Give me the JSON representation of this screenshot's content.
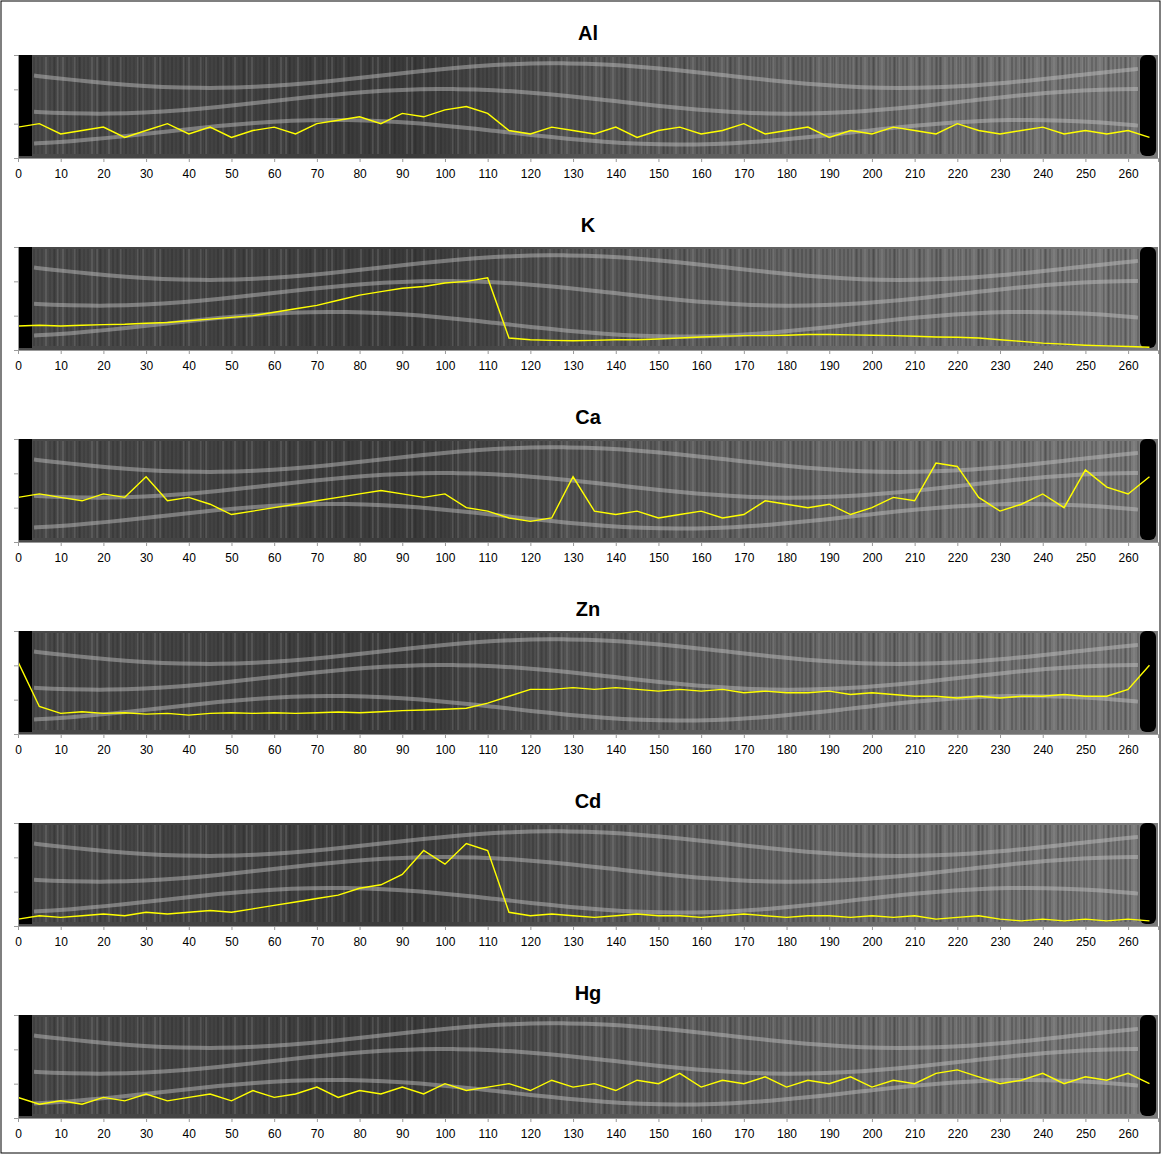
{
  "chart_data": [
    {
      "type": "line",
      "title": "Al",
      "color": "#ffff00",
      "tick_labels": "x",
      "xlim": [
        0,
        267
      ],
      "xticks": [
        0,
        10,
        20,
        30,
        40,
        50,
        60,
        70,
        80,
        90,
        100,
        110,
        120,
        130,
        140,
        150,
        160,
        170,
        180,
        190,
        200,
        210,
        220,
        230,
        240,
        250,
        260
      ],
      "ylim": [
        0,
        3
      ],
      "yticks": [
        0,
        1,
        2,
        3
      ],
      "x": [
        0,
        5,
        10,
        15,
        20,
        25,
        30,
        35,
        40,
        45,
        50,
        55,
        60,
        65,
        70,
        75,
        80,
        85,
        90,
        95,
        100,
        105,
        110,
        115,
        120,
        125,
        130,
        135,
        140,
        145,
        150,
        155,
        160,
        165,
        170,
        175,
        180,
        185,
        190,
        195,
        200,
        205,
        210,
        215,
        220,
        225,
        230,
        235,
        240,
        245,
        250,
        255,
        260,
        265
      ],
      "values": [
        0.9,
        1.0,
        0.7,
        0.8,
        0.9,
        0.6,
        0.8,
        1.0,
        0.7,
        0.9,
        0.6,
        0.8,
        0.9,
        0.7,
        1.0,
        1.1,
        1.2,
        1.0,
        1.3,
        1.2,
        1.4,
        1.5,
        1.3,
        0.8,
        0.7,
        0.9,
        0.8,
        0.7,
        0.9,
        0.6,
        0.8,
        0.9,
        0.7,
        0.8,
        1.0,
        0.7,
        0.8,
        0.9,
        0.6,
        0.8,
        0.7,
        0.9,
        0.8,
        0.7,
        1.0,
        0.8,
        0.7,
        0.8,
        0.9,
        0.7,
        0.8,
        0.7,
        0.8,
        0.6
      ]
    },
    {
      "type": "line",
      "title": "K",
      "color": "#ffff00",
      "tick_labels": "x",
      "xlim": [
        0,
        267
      ],
      "xticks": [
        0,
        10,
        20,
        30,
        40,
        50,
        60,
        70,
        80,
        90,
        100,
        110,
        120,
        130,
        140,
        150,
        160,
        170,
        180,
        190,
        200,
        210,
        220,
        230,
        240,
        250,
        260
      ],
      "ylim": [
        0,
        3
      ],
      "yticks": [
        0,
        1,
        2,
        3
      ],
      "x": [
        0,
        5,
        10,
        15,
        20,
        25,
        30,
        35,
        40,
        45,
        50,
        55,
        60,
        65,
        70,
        75,
        80,
        85,
        90,
        95,
        100,
        105,
        110,
        115,
        120,
        125,
        130,
        135,
        140,
        145,
        150,
        155,
        160,
        165,
        170,
        175,
        180,
        185,
        190,
        195,
        200,
        205,
        210,
        215,
        220,
        225,
        230,
        235,
        240,
        245,
        250,
        255,
        260,
        265
      ],
      "values": [
        0.7,
        0.72,
        0.7,
        0.72,
        0.74,
        0.75,
        0.78,
        0.8,
        0.85,
        0.9,
        0.95,
        1.0,
        1.1,
        1.2,
        1.3,
        1.45,
        1.6,
        1.7,
        1.8,
        1.85,
        1.95,
        2.0,
        2.1,
        0.35,
        0.3,
        0.28,
        0.27,
        0.28,
        0.3,
        0.3,
        0.32,
        0.35,
        0.38,
        0.4,
        0.42,
        0.42,
        0.43,
        0.45,
        0.45,
        0.44,
        0.43,
        0.42,
        0.4,
        0.38,
        0.37,
        0.35,
        0.3,
        0.25,
        0.2,
        0.17,
        0.14,
        0.12,
        0.1,
        0.08
      ]
    },
    {
      "type": "line",
      "title": "Ca",
      "color": "#ffff00",
      "tick_labels": "x",
      "xlim": [
        0,
        267
      ],
      "xticks": [
        0,
        10,
        20,
        30,
        40,
        50,
        60,
        70,
        80,
        90,
        100,
        110,
        120,
        130,
        140,
        150,
        160,
        170,
        180,
        190,
        200,
        210,
        220,
        230,
        240,
        250,
        260
      ],
      "ylim": [
        0,
        3
      ],
      "yticks": [
        0,
        1,
        2,
        3
      ],
      "x": [
        0,
        5,
        10,
        15,
        20,
        25,
        30,
        35,
        40,
        45,
        50,
        55,
        60,
        65,
        70,
        75,
        80,
        85,
        90,
        95,
        100,
        105,
        110,
        115,
        120,
        125,
        130,
        135,
        140,
        145,
        150,
        155,
        160,
        165,
        170,
        175,
        180,
        185,
        190,
        195,
        200,
        205,
        210,
        215,
        220,
        225,
        230,
        235,
        240,
        245,
        250,
        255,
        260,
        265
      ],
      "values": [
        1.3,
        1.4,
        1.3,
        1.2,
        1.4,
        1.3,
        1.9,
        1.2,
        1.3,
        1.1,
        0.8,
        0.9,
        1.0,
        1.1,
        1.2,
        1.3,
        1.4,
        1.5,
        1.4,
        1.3,
        1.4,
        1.0,
        0.9,
        0.7,
        0.6,
        0.7,
        1.9,
        0.9,
        0.8,
        0.9,
        0.7,
        0.8,
        0.9,
        0.7,
        0.8,
        1.2,
        1.1,
        1.0,
        1.1,
        0.8,
        1.0,
        1.3,
        1.2,
        2.3,
        2.2,
        1.3,
        0.9,
        1.1,
        1.4,
        1.0,
        2.1,
        1.6,
        1.4,
        1.9
      ]
    },
    {
      "type": "line",
      "title": "Zn",
      "color": "#ffff00",
      "tick_labels": "x",
      "xlim": [
        0,
        267
      ],
      "xticks": [
        0,
        10,
        20,
        30,
        40,
        50,
        60,
        70,
        80,
        90,
        100,
        110,
        120,
        130,
        140,
        150,
        160,
        170,
        180,
        190,
        200,
        210,
        220,
        230,
        240,
        250,
        260
      ],
      "ylim": [
        0,
        3
      ],
      "yticks": [
        0,
        1,
        2,
        3
      ],
      "x": [
        0,
        5,
        10,
        15,
        20,
        25,
        30,
        35,
        40,
        45,
        50,
        55,
        60,
        65,
        70,
        75,
        80,
        85,
        90,
        95,
        100,
        105,
        110,
        115,
        120,
        125,
        130,
        135,
        140,
        145,
        150,
        155,
        160,
        165,
        170,
        175,
        180,
        185,
        190,
        195,
        200,
        205,
        210,
        215,
        220,
        225,
        230,
        235,
        240,
        245,
        250,
        255,
        260,
        265
      ],
      "values": [
        2.1,
        0.8,
        0.6,
        0.65,
        0.6,
        0.62,
        0.58,
        0.6,
        0.55,
        0.6,
        0.62,
        0.6,
        0.62,
        0.6,
        0.62,
        0.64,
        0.62,
        0.65,
        0.68,
        0.7,
        0.72,
        0.75,
        0.9,
        1.1,
        1.3,
        1.3,
        1.35,
        1.3,
        1.35,
        1.3,
        1.25,
        1.3,
        1.25,
        1.3,
        1.2,
        1.25,
        1.2,
        1.2,
        1.25,
        1.15,
        1.2,
        1.15,
        1.1,
        1.1,
        1.05,
        1.1,
        1.05,
        1.1,
        1.1,
        1.15,
        1.1,
        1.1,
        1.3,
        2.0
      ]
    },
    {
      "type": "line",
      "title": "Cd",
      "color": "#ffff00",
      "tick_labels": "x",
      "xlim": [
        0,
        267
      ],
      "xticks": [
        0,
        10,
        20,
        30,
        40,
        50,
        60,
        70,
        80,
        90,
        100,
        110,
        120,
        130,
        140,
        150,
        160,
        170,
        180,
        190,
        200,
        210,
        220,
        230,
        240,
        250,
        260
      ],
      "ylim": [
        0,
        3
      ],
      "yticks": [
        0,
        1,
        2,
        3
      ],
      "x": [
        0,
        5,
        10,
        15,
        20,
        25,
        30,
        35,
        40,
        45,
        50,
        55,
        60,
        65,
        70,
        75,
        80,
        85,
        90,
        95,
        100,
        105,
        110,
        115,
        120,
        125,
        130,
        135,
        140,
        145,
        150,
        155,
        160,
        165,
        170,
        175,
        180,
        185,
        190,
        195,
        200,
        205,
        210,
        215,
        220,
        225,
        230,
        235,
        240,
        245,
        250,
        255,
        260,
        265
      ],
      "values": [
        0.2,
        0.3,
        0.25,
        0.3,
        0.35,
        0.3,
        0.4,
        0.35,
        0.4,
        0.45,
        0.4,
        0.5,
        0.6,
        0.7,
        0.8,
        0.9,
        1.1,
        1.2,
        1.5,
        2.2,
        1.8,
        2.4,
        2.2,
        0.4,
        0.3,
        0.35,
        0.3,
        0.25,
        0.3,
        0.35,
        0.3,
        0.3,
        0.25,
        0.3,
        0.35,
        0.3,
        0.25,
        0.3,
        0.3,
        0.25,
        0.3,
        0.25,
        0.3,
        0.2,
        0.25,
        0.3,
        0.2,
        0.15,
        0.2,
        0.15,
        0.2,
        0.15,
        0.2,
        0.15
      ]
    },
    {
      "type": "line",
      "title": "Hg",
      "color": "#ffff00",
      "tick_labels": "x",
      "xlim": [
        0,
        267
      ],
      "xticks": [
        0,
        10,
        20,
        30,
        40,
        50,
        60,
        70,
        80,
        90,
        100,
        110,
        120,
        130,
        140,
        150,
        160,
        170,
        180,
        190,
        200,
        210,
        220,
        230,
        240,
        250,
        260
      ],
      "ylim": [
        0,
        3
      ],
      "yticks": [
        0,
        1,
        2,
        3
      ],
      "x": [
        0,
        5,
        10,
        15,
        20,
        25,
        30,
        35,
        40,
        45,
        50,
        55,
        60,
        65,
        70,
        75,
        80,
        85,
        90,
        95,
        100,
        105,
        110,
        115,
        120,
        125,
        130,
        135,
        140,
        145,
        150,
        155,
        160,
        165,
        170,
        175,
        180,
        185,
        190,
        195,
        200,
        205,
        210,
        215,
        220,
        225,
        230,
        235,
        240,
        245,
        250,
        255,
        260,
        265
      ],
      "values": [
        0.6,
        0.4,
        0.5,
        0.4,
        0.6,
        0.5,
        0.7,
        0.5,
        0.6,
        0.7,
        0.5,
        0.8,
        0.6,
        0.7,
        0.9,
        0.6,
        0.8,
        0.7,
        0.9,
        0.7,
        1.0,
        0.8,
        0.9,
        1.0,
        0.8,
        1.1,
        0.9,
        1.0,
        0.8,
        1.1,
        1.0,
        1.3,
        0.9,
        1.1,
        1.0,
        1.2,
        0.9,
        1.1,
        1.0,
        1.2,
        0.9,
        1.1,
        1.0,
        1.3,
        1.4,
        1.2,
        1.0,
        1.1,
        1.3,
        1.0,
        1.2,
        1.1,
        1.3,
        1.0
      ]
    }
  ]
}
